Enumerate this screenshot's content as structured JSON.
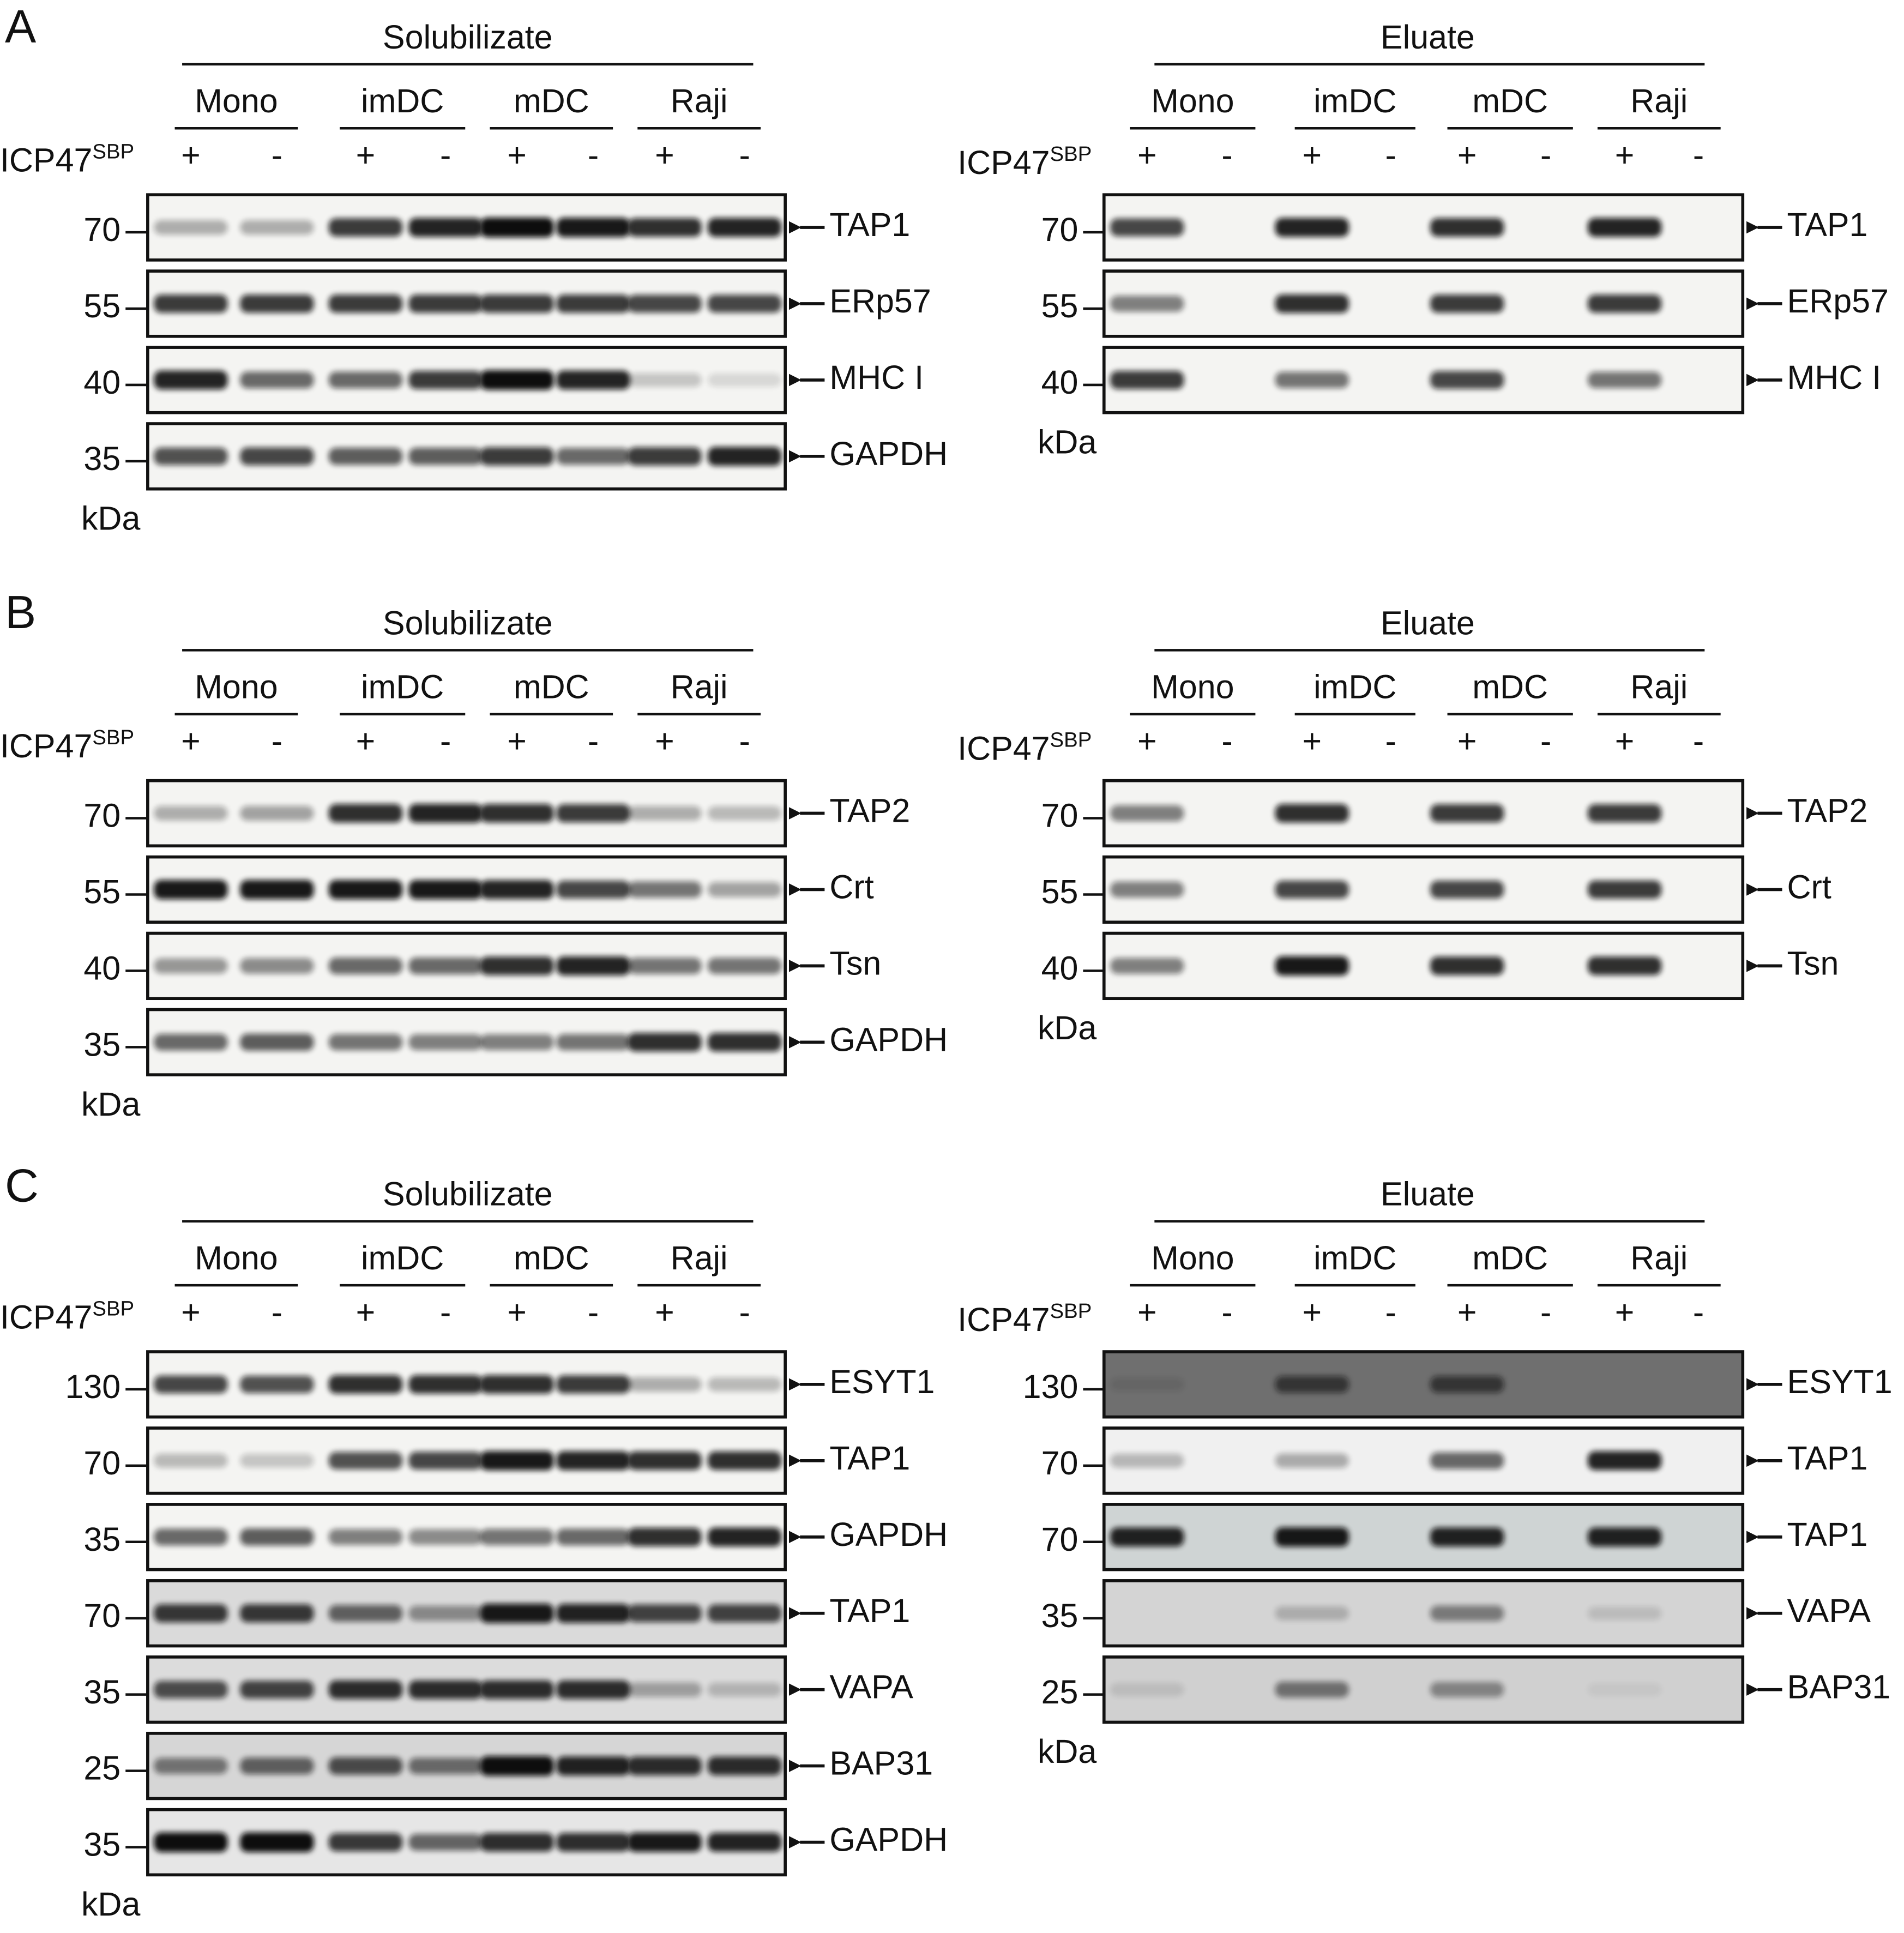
{
  "panels": [
    {
      "letter": "A",
      "blots": [
        {
          "title": "Solubilizate",
          "groups": [
            "Mono",
            "imDC",
            "mDC",
            "Raji"
          ],
          "treatment": {
            "label": "ICP47",
            "superscript": "SBP"
          },
          "signs": [
            "+",
            "-",
            "+",
            "-",
            "+",
            "-",
            "+",
            "-"
          ],
          "unit": "kDa",
          "rows": [
            {
              "label": "TAP1",
              "marker": "70"
            },
            {
              "label": "ERp57",
              "marker": "55"
            },
            {
              "label": "MHC I",
              "marker": "40"
            },
            {
              "label": "GAPDH",
              "marker": "35"
            }
          ]
        },
        {
          "title": "Eluate",
          "groups": [
            "Mono",
            "imDC",
            "mDC",
            "Raji"
          ],
          "treatment": {
            "label": "ICP47",
            "superscript": "SBP"
          },
          "signs": [
            "+",
            "-",
            "+",
            "-",
            "+",
            "-",
            "+",
            "-"
          ],
          "unit": "kDa",
          "rows": [
            {
              "label": "TAP1",
              "marker": "70"
            },
            {
              "label": "ERp57",
              "marker": "55"
            },
            {
              "label": "MHC I",
              "marker": "40"
            }
          ]
        }
      ]
    },
    {
      "letter": "B",
      "blots": [
        {
          "title": "Solubilizate",
          "groups": [
            "Mono",
            "imDC",
            "mDC",
            "Raji"
          ],
          "treatment": {
            "label": "ICP47",
            "superscript": "SBP"
          },
          "signs": [
            "+",
            "-",
            "+",
            "-",
            "+",
            "-",
            "+",
            "-"
          ],
          "unit": "kDa",
          "rows": [
            {
              "label": "TAP2",
              "marker": "70"
            },
            {
              "label": "Crt",
              "marker": "55"
            },
            {
              "label": "Tsn",
              "marker": "40"
            },
            {
              "label": "GAPDH",
              "marker": "35"
            }
          ]
        },
        {
          "title": "Eluate",
          "groups": [
            "Mono",
            "imDC",
            "mDC",
            "Raji"
          ],
          "treatment": {
            "label": "ICP47",
            "superscript": "SBP"
          },
          "signs": [
            "+",
            "-",
            "+",
            "-",
            "+",
            "-",
            "+",
            "-"
          ],
          "unit": "kDa",
          "rows": [
            {
              "label": "TAP2",
              "marker": "70"
            },
            {
              "label": "Crt",
              "marker": "55"
            },
            {
              "label": "Tsn",
              "marker": "40"
            }
          ]
        }
      ]
    },
    {
      "letter": "C",
      "blots": [
        {
          "title": "Solubilizate",
          "groups": [
            "Mono",
            "imDC",
            "mDC",
            "Raji"
          ],
          "treatment": {
            "label": "ICP47",
            "superscript": "SBP"
          },
          "signs": [
            "+",
            "-",
            "+",
            "-",
            "+",
            "-",
            "+",
            "-"
          ],
          "unit": "kDa",
          "rows": [
            {
              "label": "ESYT1",
              "marker": "130"
            },
            {
              "label": "TAP1",
              "marker": "70"
            },
            {
              "label": "GAPDH",
              "marker": "35"
            },
            {
              "label": "TAP1",
              "marker": "70"
            },
            {
              "label": "VAPA",
              "marker": "35"
            },
            {
              "label": "BAP31",
              "marker": "25"
            },
            {
              "label": "GAPDH",
              "marker": "35"
            }
          ]
        },
        {
          "title": "Eluate",
          "groups": [
            "Mono",
            "imDC",
            "mDC",
            "Raji"
          ],
          "treatment": {
            "label": "ICP47",
            "superscript": "SBP"
          },
          "signs": [
            "+",
            "-",
            "+",
            "-",
            "+",
            "-",
            "+",
            "-"
          ],
          "unit": "kDa",
          "rows": [
            {
              "label": "ESYT1",
              "marker": "130"
            },
            {
              "label": "TAP1",
              "marker": "70"
            },
            {
              "label": "TAP1",
              "marker": "70"
            },
            {
              "label": "VAPA",
              "marker": "35"
            },
            {
              "label": "BAP31",
              "marker": "25"
            }
          ]
        }
      ]
    }
  ]
}
